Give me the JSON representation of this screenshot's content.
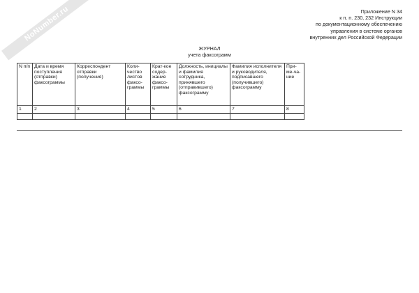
{
  "watermark": "NoNumber.ru",
  "appendix": [
    "Приложение N 34",
    "к п. п. 230, 232 Инструкции",
    "по документационному обеспечению",
    "управления в системе органов",
    "внутренних дел Российской Федерации"
  ],
  "title": "ЖУРНАЛ",
  "subtitle": "учета факсограмм",
  "table": {
    "headers": [
      "N п/п",
      "Дата и время поступления (отправки) факсограммы",
      "Корреспондент отправки (получения)",
      "Коли-чество листов факсо-граммы",
      "Крат-кое содер-жание факсо-граммы",
      "Должность, инициалы и фамилия сотрудника, принявшего (отправившего) факсограмму",
      "Фамилия исполнителя и руководителя, подписавшего (получившего) факсограмму",
      "При-ме-ча-ние"
    ],
    "numbers": [
      "1",
      "2",
      "3",
      "4",
      "5",
      "6",
      "7",
      "8"
    ]
  }
}
